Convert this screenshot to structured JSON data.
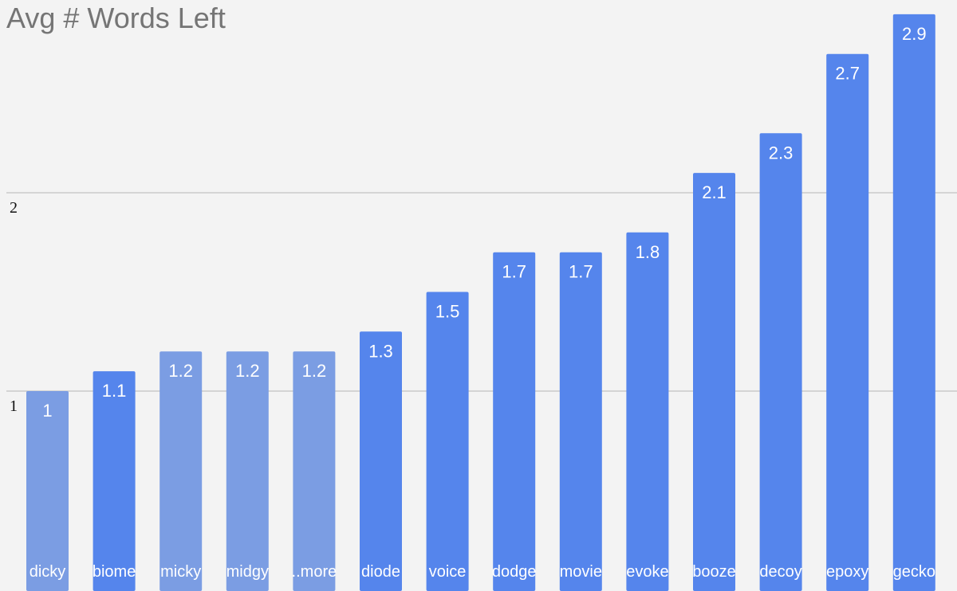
{
  "chart_data": {
    "type": "bar",
    "title": "Avg # Words Left",
    "xlabel": "",
    "ylabel": "",
    "categories": [
      "dicky",
      "biome",
      "micky",
      "midgy",
      "..more",
      "diode",
      "voice",
      "dodge",
      "movie",
      "evoke",
      "booze",
      "decoy",
      "epoxy",
      "gecko"
    ],
    "values": [
      1,
      1.1,
      1.2,
      1.2,
      1.2,
      1.3,
      1.5,
      1.7,
      1.7,
      1.8,
      2.1,
      2.3,
      2.7,
      2.9
    ],
    "value_labels": [
      "1",
      "1.1",
      "1.2",
      "1.2",
      "1.2",
      "1.3",
      "1.5",
      "1.7",
      "1.7",
      "1.8",
      "2.1",
      "2.3",
      "2.7",
      "2.9"
    ],
    "yticks": [
      1,
      2
    ],
    "ytick_labels": [
      "1",
      "2"
    ],
    "ylim": [
      0,
      3
    ],
    "grid": true,
    "legend": "none",
    "bar_colors": [
      "#7b9de3",
      "#5585ec",
      "#7b9de3",
      "#7b9de3",
      "#7b9de3",
      "#5585ec",
      "#5585ec",
      "#5585ec",
      "#5585ec",
      "#5585ec",
      "#5585ec",
      "#5585ec",
      "#5585ec",
      "#5585ec"
    ],
    "label_colors": [
      "#111111",
      "#ffffff",
      "#111111",
      "#111111",
      "#111111",
      "#ffffff",
      "#ffffff",
      "#ffffff",
      "#ffffff",
      "#ffffff",
      "#ffffff",
      "#ffffff",
      "#ffffff",
      "#ffffff"
    ]
  }
}
